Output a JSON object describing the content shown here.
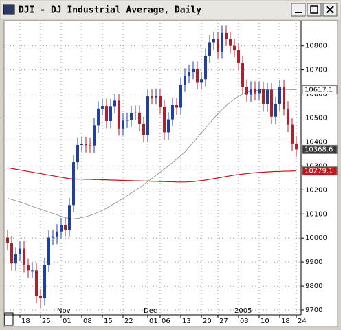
{
  "chart_data": {
    "type": "candlestick",
    "title": "DJI - DJ Industrial Average, Daily",
    "categories": [
      null,
      null,
      null,
      "18",
      null,
      null,
      null,
      null,
      "25",
      null,
      null,
      null,
      null,
      "01",
      null,
      null,
      null,
      null,
      "08",
      null,
      null,
      null,
      null,
      "15",
      null,
      null,
      null,
      null,
      "22",
      null,
      null,
      null,
      null,
      null,
      "01",
      null,
      null,
      "06",
      null,
      null,
      null,
      null,
      "13",
      null,
      null,
      null,
      null,
      "20",
      null,
      null,
      null,
      "27",
      null,
      null,
      null,
      null,
      "03",
      null,
      null,
      null,
      null,
      "10",
      null,
      null,
      null,
      null,
      "18",
      null,
      null,
      null,
      "24"
    ],
    "months": [
      null,
      null,
      null,
      null,
      null,
      null,
      null,
      null,
      null,
      null,
      null,
      null,
      null,
      "Nov",
      null,
      null,
      null,
      null,
      null,
      null,
      null,
      null,
      null,
      null,
      null,
      null,
      null,
      null,
      null,
      null,
      null,
      null,
      null,
      null,
      "Dec",
      null,
      null,
      null,
      null,
      null,
      null,
      null,
      null,
      null,
      null,
      null,
      null,
      null,
      null,
      null,
      null,
      null,
      null,
      null,
      null,
      null,
      "2005",
      null,
      null,
      null,
      null,
      null,
      null,
      null,
      null,
      null,
      null,
      null,
      null,
      null,
      null
    ],
    "ylim": [
      9680,
      10905
    ],
    "yticks": [
      9700,
      9800,
      9900,
      10000,
      10100,
      10200,
      10300,
      10400,
      10500,
      10600,
      10700,
      10800
    ],
    "grid": true,
    "up_color": "#1c3fa8",
    "down_color": "#b0202a",
    "open": [
      10002,
      9979,
      9894,
      9933,
      9956,
      9886,
      9865,
      9865,
      9758,
      9749,
      9888,
      10002,
      10004,
      10027,
      10054,
      10035,
      10137,
      10315,
      10387,
      10391,
      10386,
      10385,
      10469,
      10539,
      10550,
      10487,
      10549,
      10572,
      10456,
      10489,
      10492,
      10520,
      10522,
      10475,
      10428,
      10590,
      10585,
      10592,
      10547,
      10440,
      10494,
      10553,
      10543,
      10638,
      10676,
      10691,
      10705,
      10649,
      10661,
      10759,
      10815,
      10828,
      10776,
      10854,
      10829,
      10800,
      10783,
      10729,
      10630,
      10597,
      10622,
      10603,
      10621,
      10556,
      10617,
      10505,
      10558,
      10628,
      10539,
      10471,
      10393
    ],
    "high": [
      10032,
      10009,
      9963,
      9986,
      9986,
      9916,
      9895,
      9895,
      9788,
      9918,
      10032,
      10034,
      10057,
      10084,
      10084,
      10167,
      10345,
      10417,
      10421,
      10421,
      10416,
      10499,
      10569,
      10580,
      10580,
      10579,
      10602,
      10602,
      10519,
      10522,
      10550,
      10552,
      10552,
      10505,
      10620,
      10620,
      10622,
      10622,
      10577,
      10524,
      10583,
      10583,
      10668,
      10706,
      10721,
      10735,
      10735,
      10691,
      10789,
      10845,
      10858,
      10858,
      10884,
      10884,
      10859,
      10830,
      10813,
      10759,
      10660,
      10652,
      10652,
      10651,
      10651,
      10647,
      10647,
      10588,
      10658,
      10658,
      10569,
      10501,
      10423
    ],
    "low": [
      9949,
      9864,
      9864,
      9903,
      9856,
      9835,
      9835,
      9728,
      9708,
      9719,
      9858,
      9972,
      9974,
      9997,
      10005,
      10005,
      10107,
      10285,
      10357,
      10356,
      10355,
      10355,
      10439,
      10509,
      10457,
      10457,
      10519,
      10426,
      10426,
      10459,
      10462,
      10490,
      10445,
      10398,
      10398,
      10555,
      10555,
      10517,
      10410,
      10410,
      10464,
      10513,
      10513,
      10608,
      10646,
      10661,
      10619,
      10619,
      10631,
      10729,
      10785,
      10746,
      10746,
      10799,
      10770,
      10753,
      10699,
      10600,
      10567,
      10567,
      10573,
      10573,
      10526,
      10526,
      10475,
      10475,
      10528,
      10509,
      10441,
      10363,
      10339
    ],
    "close": [
      9979,
      9894,
      9933,
      9956,
      9886,
      9865,
      9865,
      9758,
      9749,
      9888,
      10002,
      10004,
      10027,
      10054,
      10035,
      10137,
      10315,
      10387,
      10391,
      10386,
      10385,
      10469,
      10539,
      10550,
      10487,
      10549,
      10572,
      10456,
      10489,
      10492,
      10520,
      10522,
      10475,
      10428,
      10590,
      10585,
      10592,
      10547,
      10440,
      10494,
      10553,
      10543,
      10638,
      10676,
      10691,
      10705,
      10649,
      10661,
      10759,
      10815,
      10828,
      10776,
      10854,
      10829,
      10800,
      10783,
      10729,
      10630,
      10597,
      10622,
      10603,
      10621,
      10556,
      10617,
      10505,
      10558,
      10628,
      10539,
      10471,
      10393,
      10368.61
    ],
    "close_label": "10368.6",
    "series": [
      {
        "color": "#8a8a8a",
        "label": "10617.1",
        "values": [
          10165,
          10160,
          10155,
          10150,
          10144,
          10138,
          10132,
          10126,
          10120,
          10114,
          10108,
          10102,
          10096,
          10090,
          10085,
          10080,
          10080,
          10082,
          10085,
          10089,
          10094,
          10100,
          10107,
          10115,
          10124,
          10134,
          10144,
          10154,
          10165,
          10176,
          10187,
          10198,
          10209,
          10222,
          10235,
          10248,
          10261,
          10274,
          10287,
          10300,
          10314,
          10328,
          10343,
          10358,
          10378,
          10398,
          10418,
          10438,
          10458,
          10478,
          10498,
          10517,
          10535,
          10551,
          10565,
          10578,
          10590,
          10599,
          10606,
          10611,
          10614,
          10616,
          10617,
          10618,
          10618,
          10619,
          10619,
          10618,
          10618,
          10617,
          10617.1
        ]
      },
      {
        "color": "#c8141e",
        "label": "10279.1",
        "values": [
          10292,
          10289,
          10286,
          10283,
          10280,
          10277,
          10274,
          10271,
          10268,
          10265,
          10262,
          10259,
          10256,
          10253,
          10250,
          10247,
          10246,
          10245,
          10245,
          10244,
          10244,
          10243,
          10243,
          10242,
          10242,
          10241,
          10241,
          10240,
          10240,
          10239,
          10239,
          10238,
          10238,
          10237,
          10237,
          10236,
          10236,
          10235,
          10235,
          10234,
          10234,
          10233,
          10233,
          10233,
          10234,
          10235,
          10237,
          10239,
          10241,
          10244,
          10247,
          10250,
          10253,
          10256,
          10259,
          10262,
          10264,
          10266,
          10268,
          10270,
          10272,
          10273,
          10274,
          10275,
          10276,
          10277,
          10277,
          10278,
          10278,
          10279,
          10279.1
        ]
      }
    ]
  }
}
